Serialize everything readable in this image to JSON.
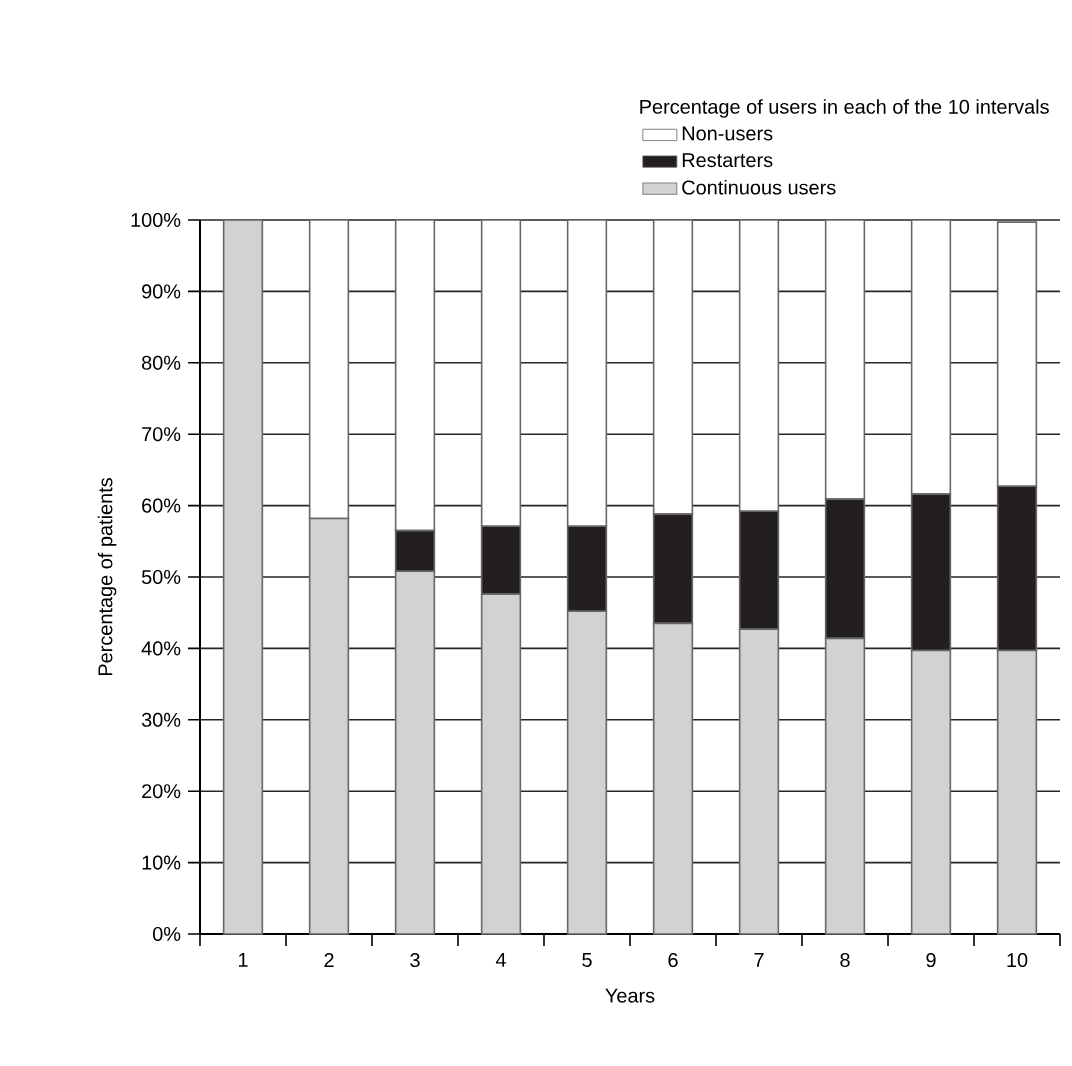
{
  "chart_data": {
    "type": "bar",
    "stacked": true,
    "xlabel": "Years",
    "ylabel": "Percentage of patients",
    "legend_title": "Percentage of users in each of the 10 intervals",
    "categories": [
      "1",
      "2",
      "3",
      "4",
      "5",
      "6",
      "7",
      "8",
      "9",
      "10"
    ],
    "series": [
      {
        "name": "Continuous users",
        "color": "#d1d2d4",
        "values": [
          100,
          58.2,
          50.8,
          47.6,
          45.2,
          43.5,
          42.7,
          41.4,
          39.7,
          39.7
        ]
      },
      {
        "name": "Restarters",
        "color": "#231f20",
        "values": [
          0,
          0,
          5.7,
          9.5,
          11.9,
          15.3,
          16.5,
          19.5,
          21.9,
          23.0
        ]
      },
      {
        "name": "Non-users",
        "color": "#ffffff",
        "values": [
          0,
          41.8,
          43.5,
          42.9,
          42.9,
          41.2,
          40.8,
          39.1,
          38.4,
          37.0
        ]
      }
    ],
    "ylim": [
      0,
      100
    ],
    "yticks": [
      {
        "value": 0,
        "label": "0%"
      },
      {
        "value": 10,
        "label": "10%"
      },
      {
        "value": 20,
        "label": "20%"
      },
      {
        "value": 30,
        "label": "30%"
      },
      {
        "value": 40,
        "label": "40%"
      },
      {
        "value": 50,
        "label": "50%"
      },
      {
        "value": 60,
        "label": "60%"
      },
      {
        "value": 70,
        "label": "70%"
      },
      {
        "value": 80,
        "label": "80%"
      },
      {
        "value": 90,
        "label": "90%"
      },
      {
        "value": 100,
        "label": "100%"
      }
    ],
    "grid": "y",
    "legend": "top right"
  }
}
